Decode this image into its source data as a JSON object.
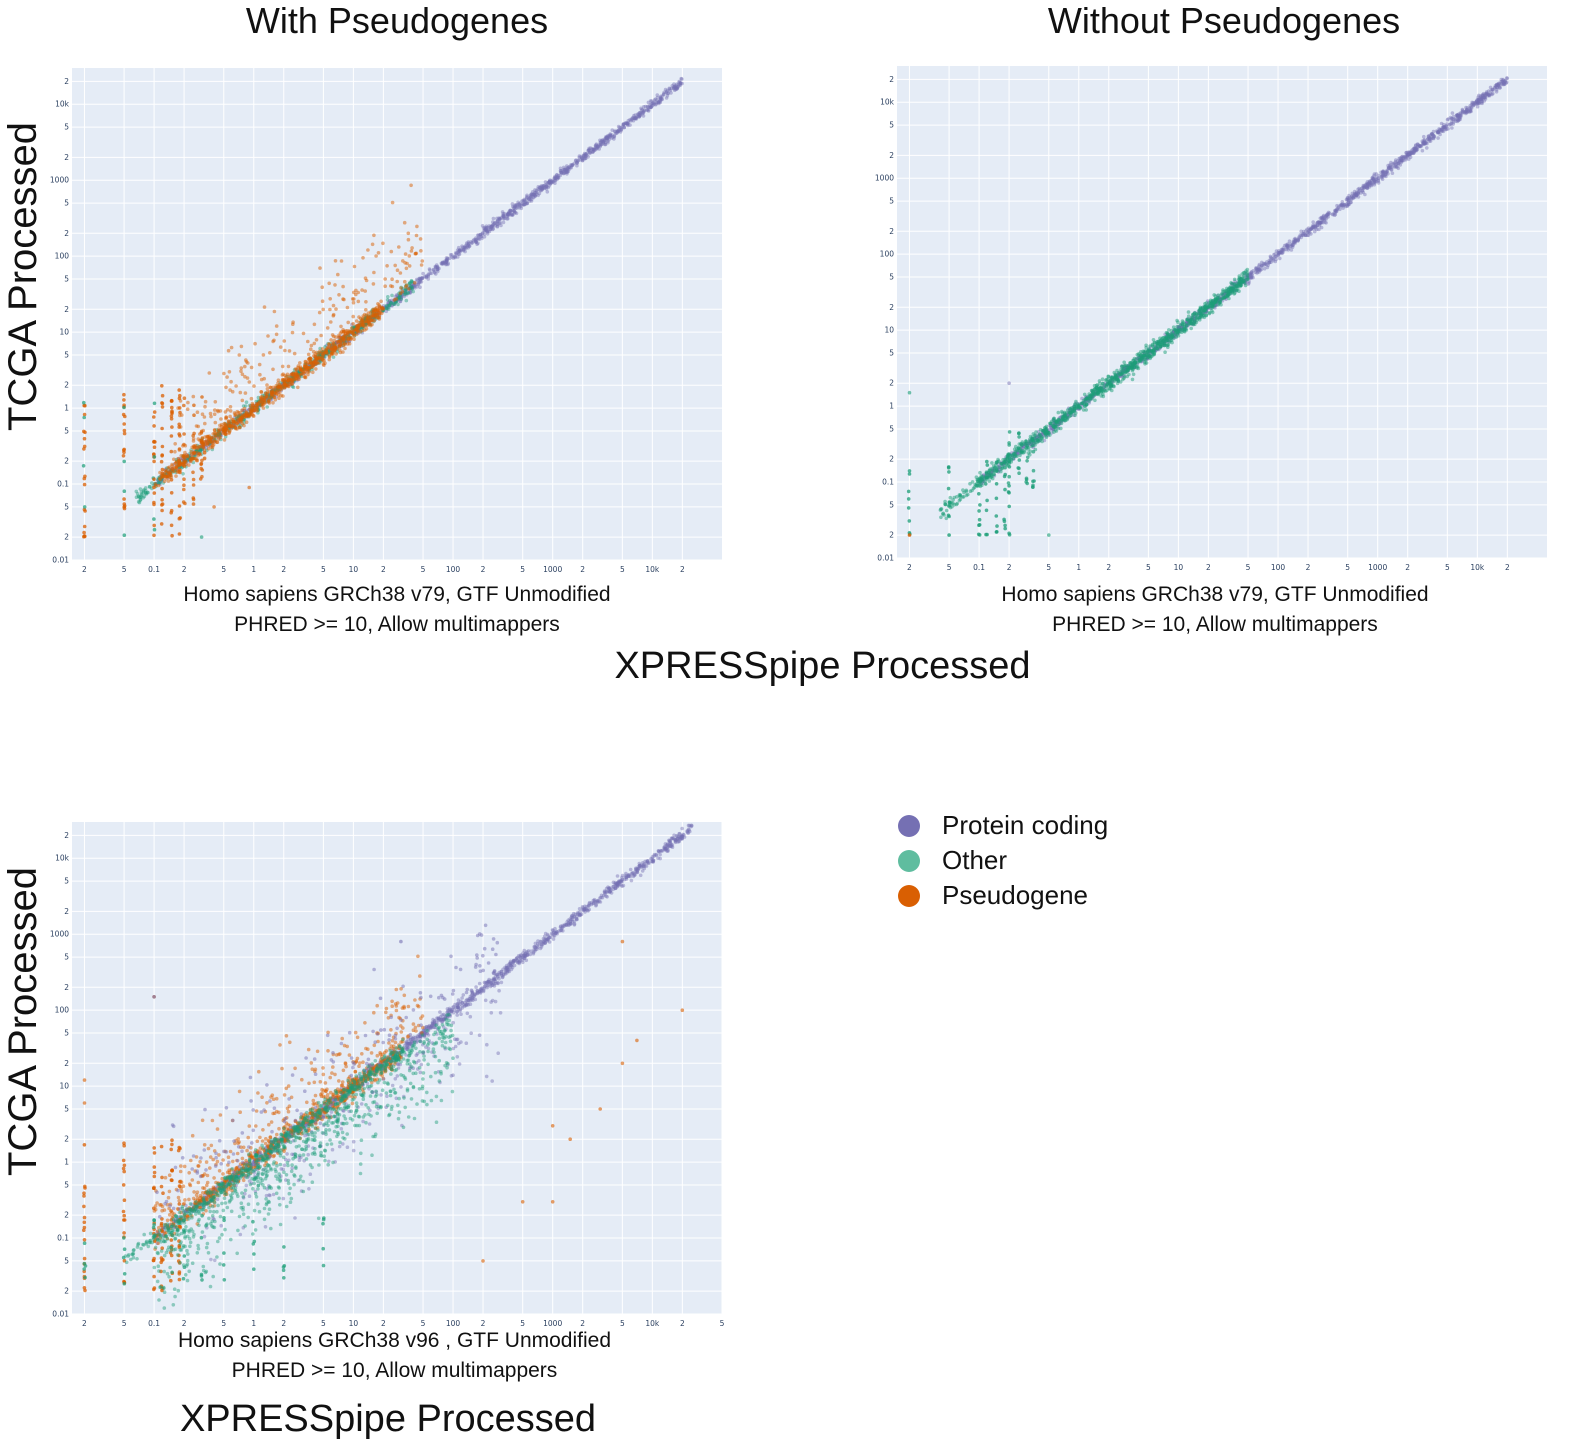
{
  "colors": {
    "protein_coding": "#7570b3",
    "other": "#1b9e77",
    "pseudogene": "#d95f02",
    "plot_bg": "#e5ecf6",
    "grid": "#ffffff",
    "tick_text": "#2a3f5f"
  },
  "panels": {
    "top_left": {
      "title": "With Pseudogenes",
      "ylabel": "TCGA Processed",
      "caption_line1": "Homo sapiens GRCh38 v79, GTF Unmodified",
      "caption_line2": "PHRED >= 10, Allow multimappers"
    },
    "top_right": {
      "title": "Without Pseudogenes",
      "caption_line1": "Homo sapiens GRCh38 v79, GTF Unmodified",
      "caption_line2": "PHRED >= 10, Allow multimappers"
    },
    "bottom_left": {
      "ylabel": "TCGA Processed",
      "caption_line1": "Homo sapiens GRCh38 v96 , GTF Unmodified",
      "caption_line2": "PHRED >= 10, Allow multimappers",
      "xlabel": "XPRESSpipe Processed"
    }
  },
  "top_xlabel": "XPRESSpipe Processed",
  "legend": [
    {
      "label": "Protein coding",
      "color": "#7570b3"
    },
    {
      "label": "Other",
      "color": "#1b9e77"
    },
    {
      "label": "Pseudogene",
      "color": "#d95f02"
    }
  ],
  "chart_data": [
    {
      "type": "scatter",
      "title": "With Pseudogenes",
      "xlabel": "XPRESSpipe Processed",
      "ylabel": "TCGA Processed",
      "xscale": "log",
      "yscale": "log",
      "xlim": [
        0.015,
        50000
      ],
      "ylim": [
        0.01,
        30000
      ],
      "x_tick_labels": [
        "2",
        "5",
        "0.1",
        "2",
        "5",
        "1",
        "2",
        "5",
        "10",
        "2",
        "5",
        "100",
        "2",
        "5",
        "1000",
        "2",
        "5",
        "10k",
        "2"
      ],
      "y_tick_labels": [
        "0.01",
        "2",
        "5",
        "0.1",
        "2",
        "5",
        "1",
        "2",
        "5",
        "10",
        "2",
        "5",
        "100",
        "2",
        "5",
        "1000",
        "2",
        "5",
        "10k",
        "2"
      ],
      "series": [
        {
          "name": "Protein coding",
          "points": [
            [
              0.1,
              0.1
            ],
            [
              1,
              1
            ],
            [
              10,
              10
            ],
            [
              100,
              100
            ],
            [
              1000,
              1000
            ],
            [
              10000,
              10000
            ],
            [
              20000,
              20000
            ]
          ]
        },
        {
          "name": "Other",
          "points": [
            [
              0.02,
              0.1
            ],
            [
              0.05,
              0.2
            ],
            [
              0.1,
              0.2
            ],
            [
              0.5,
              0.5
            ],
            [
              1,
              1
            ],
            [
              5,
              5
            ],
            [
              10,
              10
            ]
          ]
        },
        {
          "name": "Pseudogene",
          "points": [
            [
              0.02,
              0.02
            ],
            [
              0.02,
              2
            ],
            [
              0.05,
              2
            ],
            [
              0.1,
              2
            ],
            [
              0.5,
              5
            ],
            [
              1,
              10
            ],
            [
              2,
              20
            ],
            [
              10,
              30
            ],
            [
              50,
              50
            ]
          ]
        }
      ]
    },
    {
      "type": "scatter",
      "title": "Without Pseudogenes",
      "xlabel": "XPRESSpipe Processed",
      "ylabel": "TCGA Processed",
      "xscale": "log",
      "yscale": "log",
      "xlim": [
        0.015,
        50000
      ],
      "ylim": [
        0.01,
        30000
      ],
      "x_tick_labels": [
        "2",
        "5",
        "0.1",
        "2",
        "5",
        "1",
        "2",
        "5",
        "10",
        "2",
        "5",
        "100",
        "2",
        "5",
        "1000",
        "2",
        "5",
        "10k",
        "2"
      ],
      "y_tick_labels": [
        "0.01",
        "2",
        "5",
        "0.1",
        "2",
        "5",
        "1",
        "2",
        "5",
        "10",
        "2",
        "5",
        "100",
        "2",
        "5",
        "1000",
        "2",
        "5",
        "10k",
        "2"
      ],
      "series": [
        {
          "name": "Protein coding",
          "points": [
            [
              0.1,
              0.1
            ],
            [
              1,
              1
            ],
            [
              10,
              10
            ],
            [
              100,
              100
            ],
            [
              1000,
              1000
            ],
            [
              10000,
              10000
            ],
            [
              20000,
              20000
            ]
          ]
        },
        {
          "name": "Other",
          "points": [
            [
              0.02,
              0.02
            ],
            [
              0.05,
              0.1
            ],
            [
              0.1,
              0.2
            ],
            [
              0.5,
              0.5
            ],
            [
              1,
              1
            ],
            [
              5,
              5
            ],
            [
              10,
              10
            ],
            [
              50,
              50
            ]
          ]
        },
        {
          "name": "Pseudogene",
          "points": [
            [
              0.02,
              0.02
            ]
          ]
        }
      ]
    },
    {
      "type": "scatter",
      "xlabel": "XPRESSpipe Processed",
      "ylabel": "TCGA Processed",
      "xscale": "log",
      "yscale": "log",
      "xlim": [
        0.015,
        50000
      ],
      "ylim": [
        0.01,
        30000
      ],
      "x_tick_labels": [
        "2",
        "5",
        "0.1",
        "2",
        "5",
        "1",
        "2",
        "5",
        "10",
        "2",
        "5",
        "100",
        "2",
        "5",
        "1000",
        "2",
        "5",
        "10k",
        "2",
        "5"
      ],
      "y_tick_labels": [
        "0.01",
        "2",
        "5",
        "0.1",
        "2",
        "5",
        "1",
        "2",
        "5",
        "10",
        "2",
        "5",
        "100",
        "2",
        "5",
        "1000",
        "2",
        "5",
        "10k",
        "2"
      ],
      "series": [
        {
          "name": "Protein coding",
          "points": [
            [
              0.1,
              0.1
            ],
            [
              1,
              1
            ],
            [
              10,
              10
            ],
            [
              100,
              100
            ],
            [
              1000,
              1000
            ],
            [
              10000,
              10000
            ],
            [
              20000,
              20000
            ],
            [
              0.1,
              150
            ],
            [
              50,
              10
            ],
            [
              100,
              5
            ]
          ]
        },
        {
          "name": "Other",
          "points": [
            [
              0.02,
              0.1
            ],
            [
              0.1,
              0.05
            ],
            [
              0.5,
              0.2
            ],
            [
              1,
              0.5
            ],
            [
              5,
              1
            ],
            [
              10,
              3
            ],
            [
              50,
              20
            ]
          ]
        },
        {
          "name": "Pseudogene",
          "points": [
            [
              0.02,
              0.02
            ],
            [
              0.02,
              2
            ],
            [
              0.5,
              5
            ],
            [
              1,
              10
            ],
            [
              5,
              20
            ],
            [
              1000,
              0.3
            ],
            [
              5000,
              800
            ],
            [
              20000,
              100
            ],
            [
              1000,
              3
            ]
          ]
        }
      ]
    }
  ]
}
